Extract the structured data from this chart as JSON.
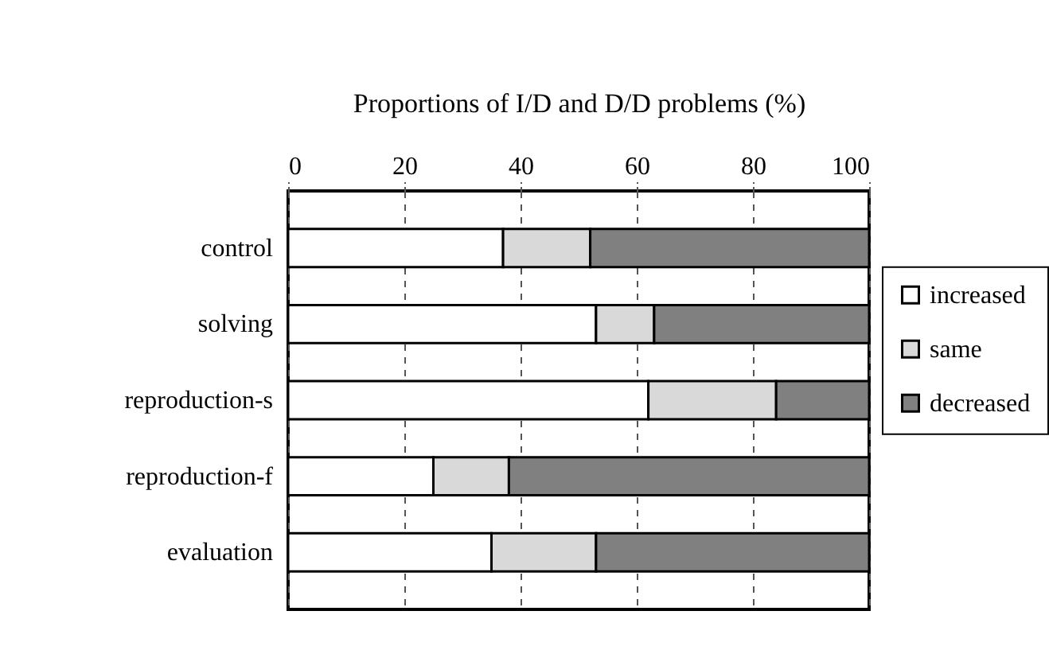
{
  "chart_data": {
    "type": "bar",
    "orientation": "horizontal",
    "stacked": true,
    "xlabel": "Proportions of I/D and D/D problems (%)",
    "categories": [
      "control",
      "solving",
      "reproduction-s",
      "reproduction-f",
      "evaluation"
    ],
    "series": [
      {
        "name": "increased",
        "color": "#ffffff",
        "values": [
          37,
          53,
          62,
          25,
          35
        ]
      },
      {
        "name": "same",
        "color": "#d9d9d9",
        "values": [
          15,
          10,
          22,
          13,
          18
        ]
      },
      {
        "name": "decreased",
        "color": "#808080",
        "values": [
          48,
          37,
          16,
          62,
          47
        ]
      }
    ],
    "xlim": [
      0,
      100
    ],
    "xticks": [
      0,
      20,
      40,
      60,
      80,
      100
    ],
    "grid": "x",
    "legend": "right"
  }
}
